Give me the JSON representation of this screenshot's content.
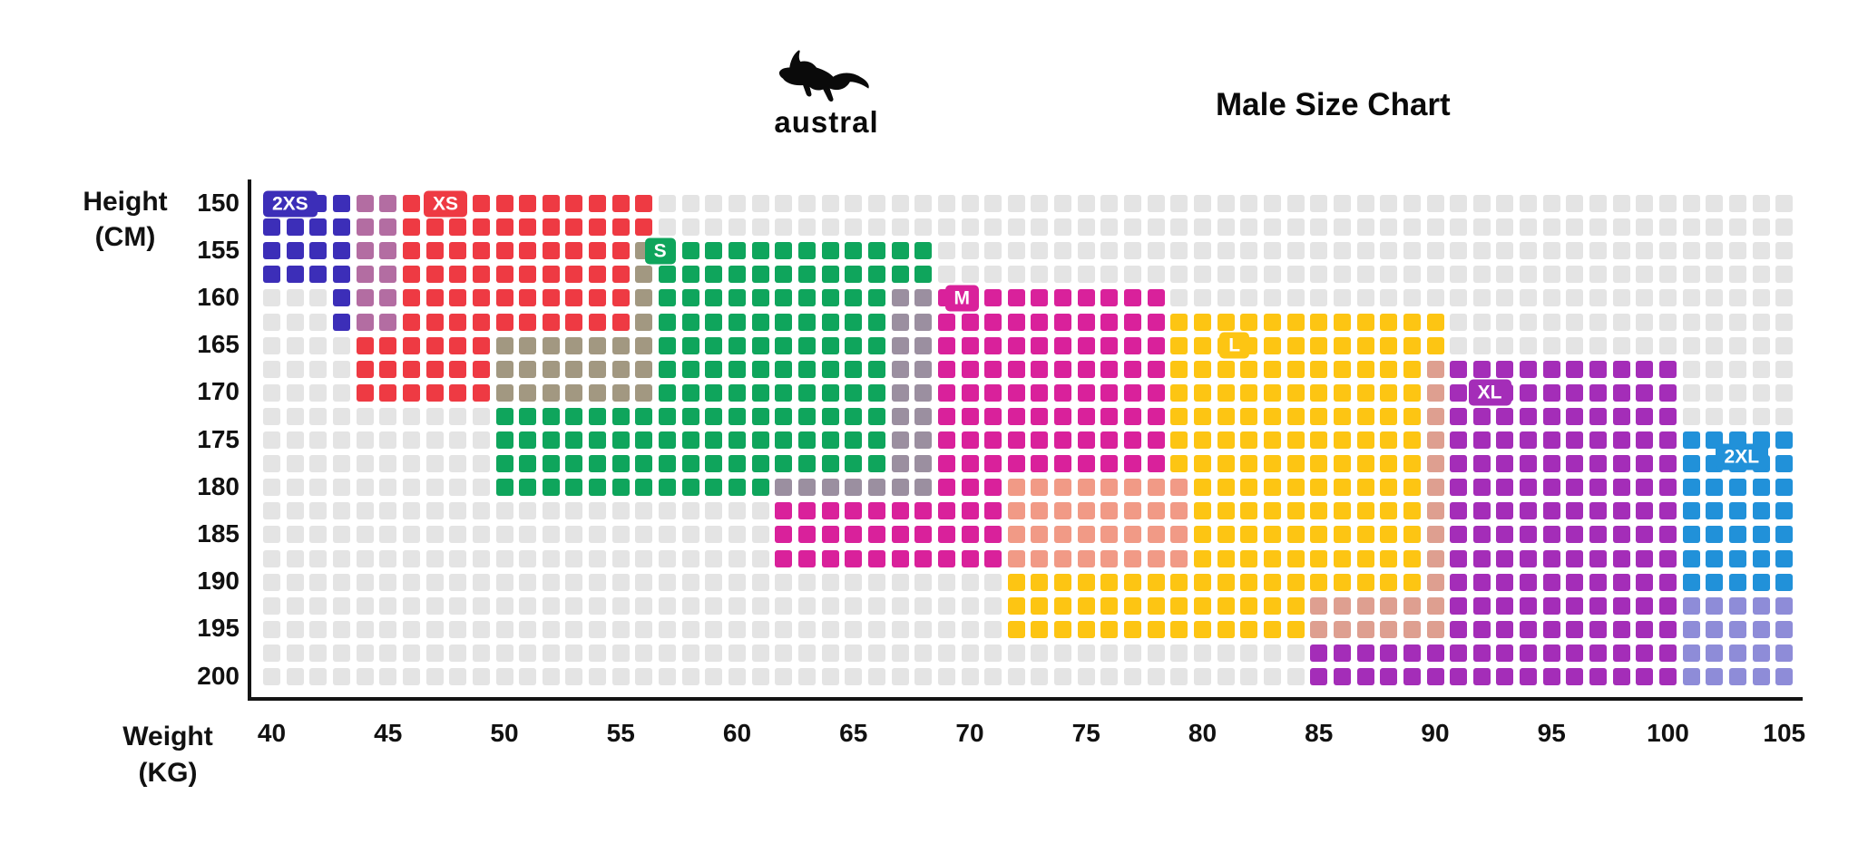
{
  "header": {
    "brand": "austral",
    "title": "Male Size Chart",
    "logo_icon": "kangaroo-icon"
  },
  "axes": {
    "y_label_line1": "Height",
    "y_label_line2": "(CM)",
    "x_label_line1": "Weight",
    "x_label_line2": "(KG)",
    "y_ticks": [
      "150",
      "155",
      "160",
      "165",
      "170",
      "175",
      "180",
      "185",
      "190",
      "195",
      "200"
    ],
    "x_ticks": [
      "40",
      "45",
      "50",
      "55",
      "60",
      "65",
      "70",
      "75",
      "80",
      "85",
      "90",
      "95",
      "100",
      "105"
    ]
  },
  "chart_data": {
    "type": "heatmap",
    "title": "Male Size Chart",
    "xlabel": "Weight (KG)",
    "ylabel": "Height (CM)",
    "x_range": [
      40,
      105
    ],
    "x_step_per_cell": 1,
    "y_range": [
      150,
      200
    ],
    "y_step_per_cell": 2.5,
    "grid": {
      "cols": 66,
      "rows": 21
    },
    "base_cell_color": "#e4e4e4",
    "legend_position": "badges-inline",
    "sizes": [
      {
        "label": "2XS",
        "color": "#3c2eb8",
        "badge": {
          "col": 0,
          "row": 0
        },
        "weight_range": [
          40,
          45
        ],
        "height_range": [
          150,
          162.5
        ],
        "rects": [
          {
            "w": [
              40,
              43
            ],
            "h": [
              150,
              157.5
            ]
          },
          {
            "w": [
              43,
              45
            ],
            "h": [
              150,
              162.5
            ]
          }
        ]
      },
      {
        "label": "XS",
        "color": "#ee3a43",
        "badge": {
          "col": 6.9,
          "row": 0
        },
        "weight_range": [
          44,
          56
        ],
        "height_range": [
          150,
          170
        ],
        "rects": [
          {
            "w": [
              44,
              56
            ],
            "h": [
              150,
              170
            ]
          }
        ]
      },
      {
        "label": "S",
        "color": "#0fa55c",
        "badge": {
          "col": 16.4,
          "row": 2
        },
        "weight_range": [
          50,
          68
        ],
        "height_range": [
          155,
          180
        ],
        "rects": [
          {
            "w": [
              56,
              68
            ],
            "h": [
              155,
              165
            ]
          },
          {
            "w": [
              50,
              68
            ],
            "h": [
              165,
              180
            ]
          }
        ]
      },
      {
        "label": "M",
        "color": "#d9219b",
        "badge": {
          "col": 29.3,
          "row": 4
        },
        "weight_range": [
          62,
          79
        ],
        "height_range": [
          160,
          187.5
        ],
        "rects": [
          {
            "w": [
              67,
              78
            ],
            "h": [
              160,
              180
            ]
          },
          {
            "w": [
              62,
              79
            ],
            "h": [
              180,
              187.5
            ]
          }
        ]
      },
      {
        "label": "L",
        "color": "#fdc513",
        "badge": {
          "col": 41.1,
          "row": 6
        },
        "weight_range": [
          72,
          90
        ],
        "height_range": [
          162.5,
          195
        ],
        "rects": [
          {
            "w": [
              79,
              90
            ],
            "h": [
              162.5,
              180
            ]
          },
          {
            "w": [
              72,
              90
            ],
            "h": [
              180,
              195
            ]
          }
        ]
      },
      {
        "label": "XL",
        "color": "#a42db8",
        "badge": {
          "col": 51.8,
          "row": 8
        },
        "weight_range": [
          85,
          105
        ],
        "height_range": [
          167.5,
          200
        ],
        "rects": [
          {
            "w": [
              90,
              100
            ],
            "h": [
              167.5,
              200
            ]
          },
          {
            "w": [
              85,
              105
            ],
            "h": [
              192.5,
              200
            ]
          }
        ]
      },
      {
        "label": "2XL",
        "color": "#2191d9",
        "badge": {
          "col": 62.4,
          "row": 10.7
        },
        "weight_range": [
          101,
          105
        ],
        "height_range": [
          175,
          200
        ],
        "rects": [
          {
            "w": [
              101,
              105
            ],
            "h": [
              175,
              200
            ]
          }
        ]
      }
    ]
  }
}
